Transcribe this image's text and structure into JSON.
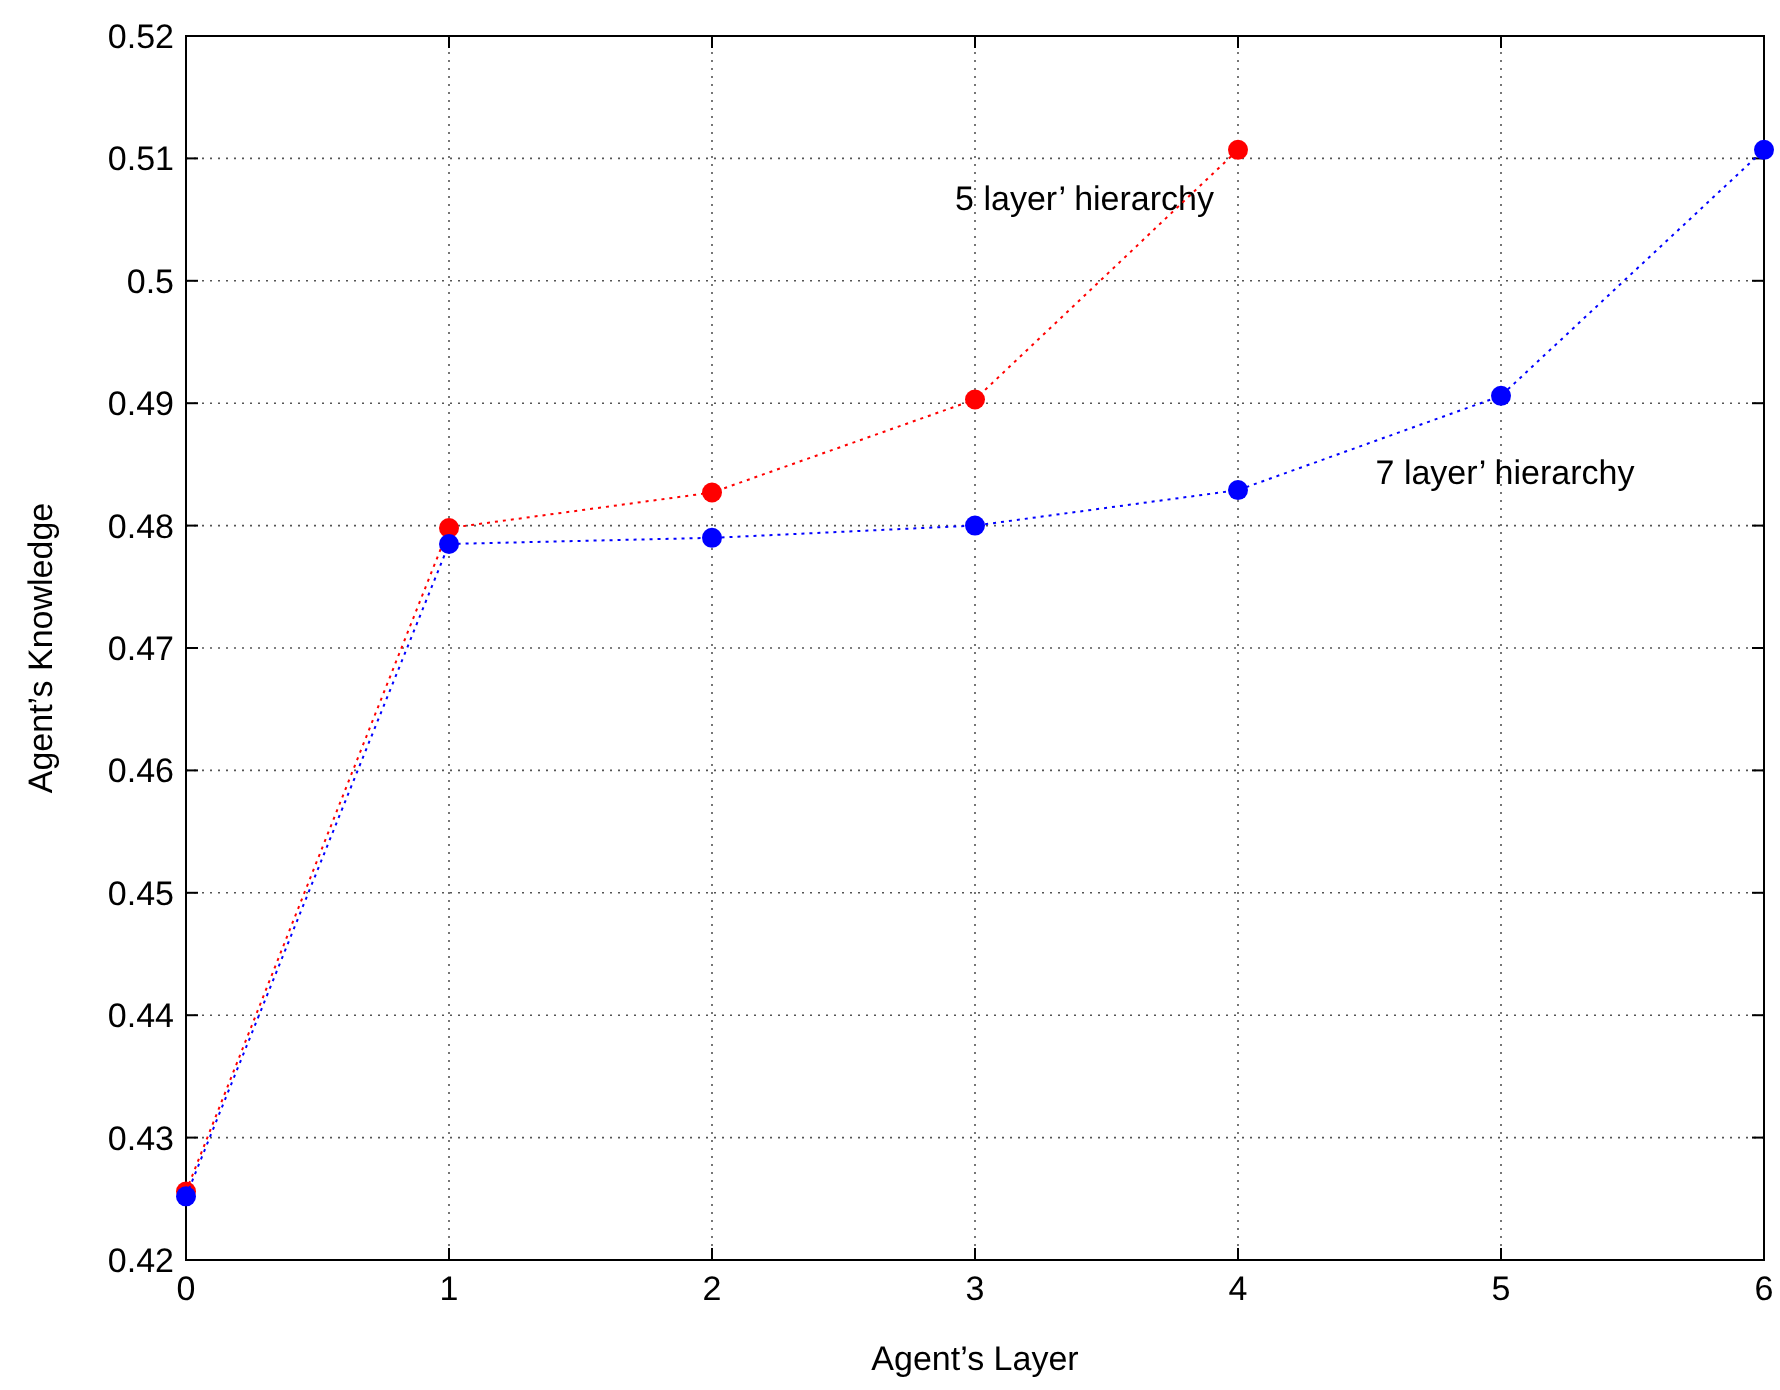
{
  "chart_data": {
    "type": "line",
    "xlabel": "Agent’s Layer",
    "ylabel": "Agent’s Knowledge",
    "xlim": [
      0,
      6
    ],
    "xticks": [
      0,
      1,
      2,
      3,
      4,
      5,
      6
    ],
    "ylim": [
      0.42,
      0.52
    ],
    "yticks": [
      0.42,
      0.43,
      0.44,
      0.45,
      0.46,
      0.47,
      0.48,
      0.49,
      0.5,
      0.51,
      0.52
    ],
    "grid": true,
    "marker": "circle",
    "line_style": "dotted",
    "series": [
      {
        "name": "5 layer’ hierarchy",
        "color": "#ff0000",
        "x": [
          0,
          1,
          2,
          3,
          4
        ],
        "values": [
          0.4256,
          0.4798,
          0.4827,
          0.4903,
          0.5107
        ]
      },
      {
        "name": "7 layer’ hierarchy",
        "color": "#0000ff",
        "x": [
          0,
          1,
          2,
          3,
          4,
          5,
          6
        ],
        "values": [
          0.4252,
          0.4785,
          0.479,
          0.48,
          0.4829,
          0.4906,
          0.5107
        ]
      }
    ]
  }
}
